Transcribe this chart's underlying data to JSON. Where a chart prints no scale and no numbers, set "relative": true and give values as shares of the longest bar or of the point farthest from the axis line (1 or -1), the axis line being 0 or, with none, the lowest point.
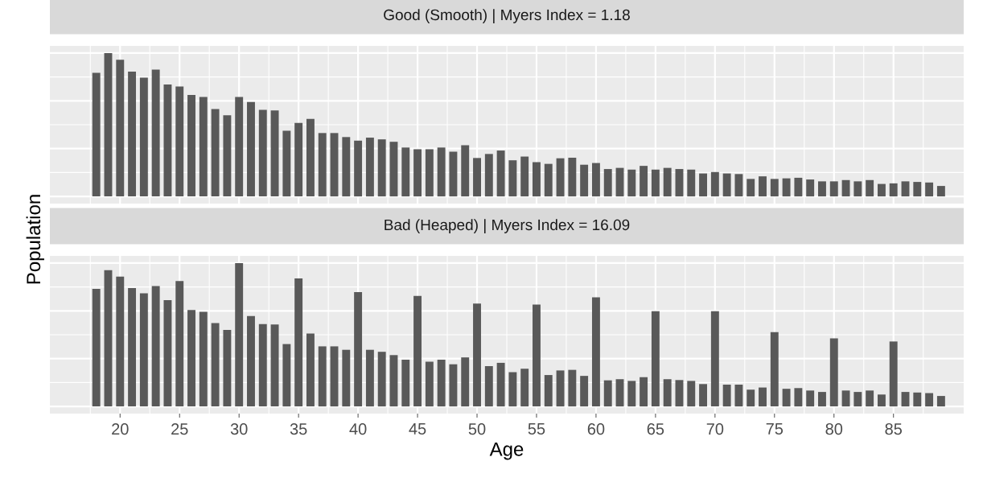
{
  "chart_data": [
    {
      "type": "bar",
      "title": "Good (Smooth) | Myers Index = 1.18",
      "ylabel": "Population",
      "relative": true,
      "color": "#595959",
      "grid": true,
      "tick_labels": false,
      "x": [
        18,
        19,
        20,
        21,
        22,
        23,
        24,
        25,
        26,
        27,
        28,
        29,
        30,
        31,
        32,
        33,
        34,
        35,
        36,
        37,
        38,
        39,
        40,
        41,
        42,
        43,
        44,
        45,
        46,
        47,
        48,
        49,
        50,
        51,
        52,
        53,
        54,
        55,
        56,
        57,
        58,
        59,
        60,
        61,
        62,
        63,
        64,
        65,
        66,
        67,
        68,
        69,
        70,
        71,
        72,
        73,
        74,
        75,
        76,
        77,
        78,
        79,
        80,
        81,
        82,
        83,
        84,
        85,
        86,
        87,
        88,
        89
      ],
      "values": [
        0.862,
        1,
        0.953,
        0.87,
        0.828,
        0.884,
        0.781,
        0.767,
        0.708,
        0.694,
        0.609,
        0.566,
        0.694,
        0.659,
        0.604,
        0.6,
        0.458,
        0.513,
        0.54,
        0.442,
        0.442,
        0.414,
        0.389,
        0.41,
        0.398,
        0.381,
        0.341,
        0.329,
        0.329,
        0.341,
        0.312,
        0.357,
        0.268,
        0.296,
        0.32,
        0.252,
        0.278,
        0.239,
        0.227,
        0.266,
        0.27,
        0.221,
        0.233,
        0.191,
        0.199,
        0.187,
        0.213,
        0.187,
        0.199,
        0.191,
        0.187,
        0.16,
        0.17,
        0.16,
        0.156,
        0.122,
        0.14,
        0.122,
        0.126,
        0.13,
        0.118,
        0.105,
        0.105,
        0.114,
        0.105,
        0.114,
        0.087,
        0.091,
        0.105,
        0.101,
        0.097,
        0.073
      ],
      "xlim": [
        14.1,
        90.9
      ],
      "xticks": [
        20,
        25,
        30,
        35,
        40,
        45,
        50,
        55,
        60,
        65,
        70,
        75,
        80,
        85
      ]
    },
    {
      "type": "bar",
      "title": "Bad (Heaped) | Myers Index = 16.09",
      "xlabel": "Age",
      "relative": true,
      "color": "#595959",
      "grid": true,
      "tick_labels": "x",
      "x": [
        18,
        19,
        20,
        21,
        22,
        23,
        24,
        25,
        26,
        27,
        28,
        29,
        30,
        31,
        32,
        33,
        34,
        35,
        36,
        37,
        38,
        39,
        40,
        41,
        42,
        43,
        44,
        45,
        46,
        47,
        48,
        49,
        50,
        51,
        52,
        53,
        54,
        55,
        56,
        57,
        58,
        59,
        60,
        61,
        62,
        63,
        64,
        65,
        66,
        67,
        68,
        69,
        70,
        71,
        72,
        73,
        74,
        75,
        76,
        77,
        78,
        79,
        80,
        81,
        82,
        83,
        84,
        85,
        86,
        87,
        88,
        89
      ],
      "values": [
        0.82,
        0.951,
        0.905,
        0.826,
        0.789,
        0.84,
        0.741,
        0.874,
        0.672,
        0.66,
        0.581,
        0.534,
        1,
        0.63,
        0.575,
        0.571,
        0.435,
        0.893,
        0.508,
        0.419,
        0.419,
        0.395,
        0.798,
        0.395,
        0.381,
        0.358,
        0.326,
        0.771,
        0.312,
        0.326,
        0.294,
        0.342,
        0.717,
        0.281,
        0.304,
        0.239,
        0.263,
        0.711,
        0.219,
        0.251,
        0.255,
        0.213,
        0.761,
        0.182,
        0.19,
        0.178,
        0.204,
        0.664,
        0.19,
        0.184,
        0.178,
        0.156,
        0.664,
        0.152,
        0.152,
        0.117,
        0.132,
        0.518,
        0.123,
        0.128,
        0.111,
        0.101,
        0.474,
        0.111,
        0.101,
        0.111,
        0.083,
        0.453,
        0.101,
        0.097,
        0.093,
        0.073
      ],
      "xlim": [
        14.1,
        90.9
      ],
      "xticks": [
        20,
        25,
        30,
        35,
        40,
        45,
        50,
        55,
        60,
        65,
        70,
        75,
        80,
        85
      ]
    }
  ]
}
